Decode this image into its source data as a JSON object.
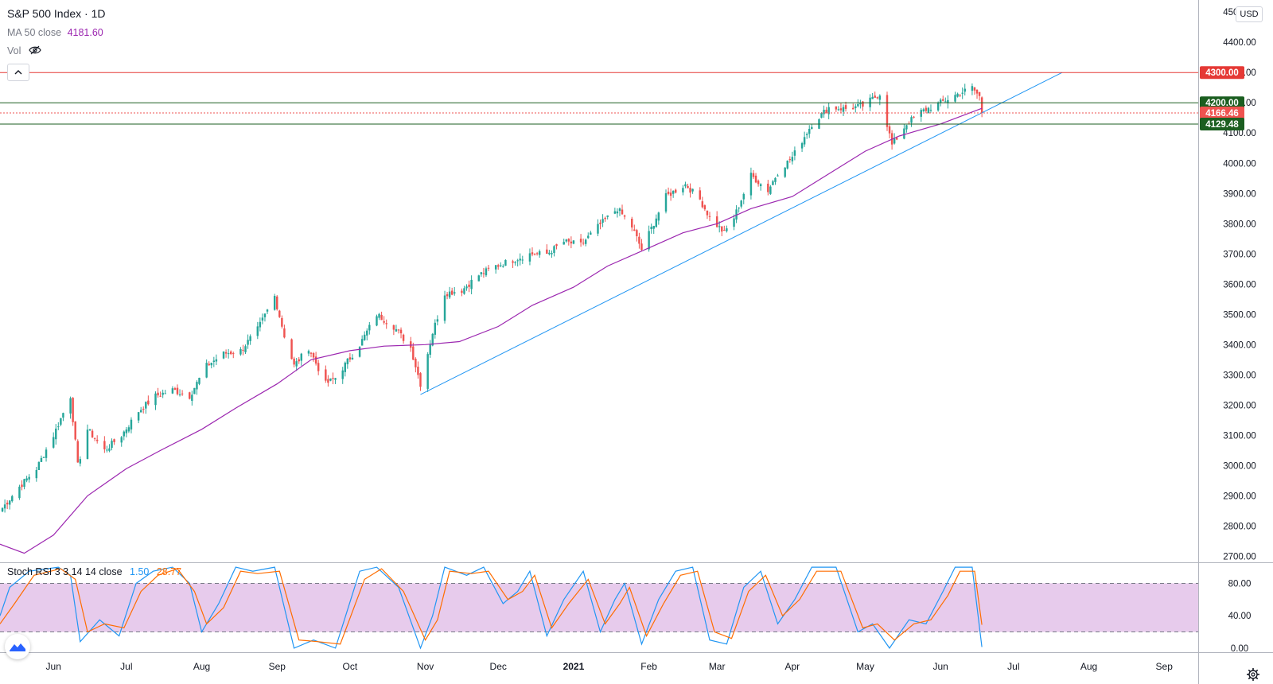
{
  "header": {
    "symbol": "S&P 500 Index · 1D",
    "ma_label": "MA 50 close",
    "ma_value": "4181.60",
    "vol_label": "Vol",
    "currency": "USD"
  },
  "oscillator": {
    "label": "Stoch RSI 3 3 14 14 close",
    "k_value": "1.50",
    "d_value": "28.77"
  },
  "colors": {
    "up": "#26a69a",
    "down": "#ef5350",
    "ma": "#9c27b0",
    "trendline": "#2196f3",
    "resistance": "#e53935",
    "support": "#1b5e20",
    "stoch_k": "#2196f3",
    "stoch_d": "#ff6d00",
    "stoch_band": "#e1bee7"
  },
  "chart_data": {
    "type": "candlestick",
    "title": "S&P 500 Index · 1D",
    "y_axis": {
      "ticks": [
        "4500.00",
        "4400.00",
        "4300.00",
        "4200.00",
        "4100.00",
        "4000.00",
        "3900.00",
        "3800.00",
        "3700.00",
        "3600.00",
        "3500.00",
        "3400.00",
        "3300.00",
        "3200.00",
        "3100.00",
        "3000.00",
        "2900.00",
        "2800.00",
        "2700.00"
      ],
      "range": [
        2680,
        4540
      ]
    },
    "x_axis": {
      "labels": [
        "Jun",
        "Jul",
        "Aug",
        "Sep",
        "Oct",
        "Nov",
        "Dec",
        "2021",
        "Feb",
        "Mar",
        "Apr",
        "May",
        "Jun",
        "Jul",
        "Aug",
        "Sep"
      ],
      "label_dates": [
        "2020-06-01",
        "2020-07-01",
        "2020-08-01",
        "2020-09-01",
        "2020-10-01",
        "2020-11-01",
        "2020-12-01",
        "2021-01-01",
        "2021-02-01",
        "2021-03-01",
        "2021-04-01",
        "2021-05-01",
        "2021-06-01",
        "2021-07-01",
        "2021-08-01",
        "2021-09-01"
      ],
      "range": [
        "2020-05-10",
        "2021-09-15"
      ]
    },
    "price_path": [
      [
        "2020-05-11",
        2860
      ],
      [
        "2020-05-18",
        2930
      ],
      [
        "2020-05-25",
        2990
      ],
      [
        "2020-06-01",
        3100
      ],
      [
        "2020-06-08",
        3230
      ],
      [
        "2020-06-11",
        3000
      ],
      [
        "2020-06-15",
        3120
      ],
      [
        "2020-06-22",
        3050
      ],
      [
        "2020-06-29",
        3100
      ],
      [
        "2020-07-06",
        3180
      ],
      [
        "2020-07-13",
        3230
      ],
      [
        "2020-07-20",
        3250
      ],
      [
        "2020-07-27",
        3230
      ],
      [
        "2020-08-03",
        3330
      ],
      [
        "2020-08-10",
        3370
      ],
      [
        "2020-08-17",
        3380
      ],
      [
        "2020-08-24",
        3450
      ],
      [
        "2020-08-31",
        3560
      ],
      [
        "2020-09-04",
        3430
      ],
      [
        "2020-09-08",
        3330
      ],
      [
        "2020-09-14",
        3390
      ],
      [
        "2020-09-21",
        3270
      ],
      [
        "2020-09-25",
        3290
      ],
      [
        "2020-10-05",
        3400
      ],
      [
        "2020-10-12",
        3500
      ],
      [
        "2020-10-19",
        3460
      ],
      [
        "2020-10-26",
        3390
      ],
      [
        "2020-10-30",
        3270
      ],
      [
        "2020-11-04",
        3440
      ],
      [
        "2020-11-09",
        3570
      ],
      [
        "2020-11-16",
        3580
      ],
      [
        "2020-11-23",
        3630
      ],
      [
        "2020-11-30",
        3660
      ],
      [
        "2020-12-07",
        3680
      ],
      [
        "2020-12-14",
        3700
      ],
      [
        "2020-12-21",
        3700
      ],
      [
        "2020-12-28",
        3740
      ],
      [
        "2021-01-04",
        3730
      ],
      [
        "2021-01-11",
        3790
      ],
      [
        "2021-01-19",
        3850
      ],
      [
        "2021-01-25",
        3790
      ],
      [
        "2021-01-29",
        3715
      ],
      [
        "2021-02-08",
        3890
      ],
      [
        "2021-02-16",
        3930
      ],
      [
        "2021-02-22",
        3880
      ],
      [
        "2021-02-26",
        3820
      ],
      [
        "2021-03-04",
        3770
      ],
      [
        "2021-03-08",
        3820
      ],
      [
        "2021-03-15",
        3960
      ],
      [
        "2021-03-22",
        3910
      ],
      [
        "2021-03-26",
        3970
      ],
      [
        "2021-04-01",
        4020
      ],
      [
        "2021-04-09",
        4130
      ],
      [
        "2021-04-16",
        4185
      ],
      [
        "2021-04-23",
        4180
      ],
      [
        "2021-04-30",
        4190
      ],
      [
        "2021-05-07",
        4230
      ],
      [
        "2021-05-12",
        4060
      ],
      [
        "2021-05-18",
        4130
      ],
      [
        "2021-05-24",
        4170
      ],
      [
        "2021-06-01",
        4200
      ],
      [
        "2021-06-07",
        4225
      ],
      [
        "2021-06-14",
        4250
      ],
      [
        "2021-06-17",
        4220
      ],
      [
        "2021-06-18",
        4166.46
      ]
    ],
    "series": [
      {
        "name": "MA 50 close",
        "points": [
          [
            "2020-05-10",
            2740
          ],
          [
            "2020-05-20",
            2710
          ],
          [
            "2020-06-01",
            2770
          ],
          [
            "2020-06-15",
            2900
          ],
          [
            "2020-07-01",
            2990
          ],
          [
            "2020-07-15",
            3050
          ],
          [
            "2020-08-01",
            3120
          ],
          [
            "2020-08-15",
            3190
          ],
          [
            "2020-09-01",
            3270
          ],
          [
            "2020-09-15",
            3350
          ],
          [
            "2020-10-01",
            3380
          ],
          [
            "2020-10-15",
            3395
          ],
          [
            "2020-11-01",
            3400
          ],
          [
            "2020-11-15",
            3410
          ],
          [
            "2020-12-01",
            3460
          ],
          [
            "2020-12-15",
            3530
          ],
          [
            "2021-01-01",
            3590
          ],
          [
            "2021-01-15",
            3660
          ],
          [
            "2021-02-01",
            3720
          ],
          [
            "2021-02-15",
            3770
          ],
          [
            "2021-03-01",
            3800
          ],
          [
            "2021-03-15",
            3850
          ],
          [
            "2021-04-01",
            3890
          ],
          [
            "2021-04-15",
            3960
          ],
          [
            "2021-05-01",
            4040
          ],
          [
            "2021-05-15",
            4090
          ],
          [
            "2021-06-01",
            4130
          ],
          [
            "2021-06-18",
            4181.6
          ]
        ]
      },
      {
        "name": "Stoch RSI %K",
        "values_path": [
          [
            "2020-05-10",
            40
          ],
          [
            "2020-05-14",
            75
          ],
          [
            "2020-05-22",
            95
          ],
          [
            "2020-06-03",
            100
          ],
          [
            "2020-06-08",
            90
          ],
          [
            "2020-06-12",
            8
          ],
          [
            "2020-06-20",
            35
          ],
          [
            "2020-06-28",
            15
          ],
          [
            "2020-07-05",
            80
          ],
          [
            "2020-07-12",
            95
          ],
          [
            "2020-07-20",
            100
          ],
          [
            "2020-07-27",
            80
          ],
          [
            "2020-08-01",
            20
          ],
          [
            "2020-08-08",
            55
          ],
          [
            "2020-08-15",
            100
          ],
          [
            "2020-08-22",
            95
          ],
          [
            "2020-08-31",
            100
          ],
          [
            "2020-09-08",
            0
          ],
          [
            "2020-09-16",
            10
          ],
          [
            "2020-09-25",
            0
          ],
          [
            "2020-10-05",
            95
          ],
          [
            "2020-10-12",
            100
          ],
          [
            "2020-10-21",
            75
          ],
          [
            "2020-10-30",
            0
          ],
          [
            "2020-11-04",
            40
          ],
          [
            "2020-11-09",
            100
          ],
          [
            "2020-11-18",
            90
          ],
          [
            "2020-11-25",
            100
          ],
          [
            "2020-12-03",
            55
          ],
          [
            "2020-12-09",
            70
          ],
          [
            "2020-12-14",
            95
          ],
          [
            "2020-12-21",
            15
          ],
          [
            "2020-12-28",
            60
          ],
          [
            "2021-01-05",
            95
          ],
          [
            "2021-01-12",
            20
          ],
          [
            "2021-01-18",
            60
          ],
          [
            "2021-01-22",
            80
          ],
          [
            "2021-01-29",
            5
          ],
          [
            "2021-02-05",
            60
          ],
          [
            "2021-02-12",
            95
          ],
          [
            "2021-02-19",
            100
          ],
          [
            "2021-02-26",
            10
          ],
          [
            "2021-03-05",
            5
          ],
          [
            "2021-03-12",
            75
          ],
          [
            "2021-03-19",
            95
          ],
          [
            "2021-03-26",
            30
          ],
          [
            "2021-04-02",
            60
          ],
          [
            "2021-04-09",
            100
          ],
          [
            "2021-04-19",
            100
          ],
          [
            "2021-04-28",
            20
          ],
          [
            "2021-05-04",
            30
          ],
          [
            "2021-05-11",
            0
          ],
          [
            "2021-05-19",
            35
          ],
          [
            "2021-05-26",
            30
          ],
          [
            "2021-06-02",
            70
          ],
          [
            "2021-06-07",
            100
          ],
          [
            "2021-06-14",
            100
          ],
          [
            "2021-06-18",
            1.5
          ]
        ]
      },
      {
        "name": "Stoch RSI %D",
        "values_path": [
          [
            "2020-05-10",
            30
          ],
          [
            "2020-05-16",
            55
          ],
          [
            "2020-05-24",
            90
          ],
          [
            "2020-06-04",
            98
          ],
          [
            "2020-06-10",
            85
          ],
          [
            "2020-06-15",
            20
          ],
          [
            "2020-06-22",
            30
          ],
          [
            "2020-06-30",
            25
          ],
          [
            "2020-07-07",
            70
          ],
          [
            "2020-07-14",
            90
          ],
          [
            "2020-07-22",
            98
          ],
          [
            "2020-07-29",
            70
          ],
          [
            "2020-08-03",
            30
          ],
          [
            "2020-08-10",
            50
          ],
          [
            "2020-08-17",
            95
          ],
          [
            "2020-08-24",
            92
          ],
          [
            "2020-09-02",
            95
          ],
          [
            "2020-09-10",
            10
          ],
          [
            "2020-09-18",
            8
          ],
          [
            "2020-09-27",
            5
          ],
          [
            "2020-10-07",
            85
          ],
          [
            "2020-10-14",
            98
          ],
          [
            "2020-10-23",
            70
          ],
          [
            "2020-11-01",
            10
          ],
          [
            "2020-11-06",
            35
          ],
          [
            "2020-11-11",
            95
          ],
          [
            "2020-11-20",
            92
          ],
          [
            "2020-11-27",
            95
          ],
          [
            "2020-12-05",
            60
          ],
          [
            "2020-12-11",
            70
          ],
          [
            "2020-12-16",
            90
          ],
          [
            "2020-12-23",
            25
          ],
          [
            "2020-12-30",
            55
          ],
          [
            "2021-01-07",
            85
          ],
          [
            "2021-01-14",
            30
          ],
          [
            "2021-01-20",
            55
          ],
          [
            "2021-01-24",
            75
          ],
          [
            "2021-01-31",
            15
          ],
          [
            "2021-02-07",
            55
          ],
          [
            "2021-02-14",
            90
          ],
          [
            "2021-02-21",
            95
          ],
          [
            "2021-02-28",
            20
          ],
          [
            "2021-03-07",
            12
          ],
          [
            "2021-03-14",
            70
          ],
          [
            "2021-03-21",
            90
          ],
          [
            "2021-03-28",
            40
          ],
          [
            "2021-04-04",
            60
          ],
          [
            "2021-04-11",
            95
          ],
          [
            "2021-04-21",
            95
          ],
          [
            "2021-04-30",
            25
          ],
          [
            "2021-05-06",
            30
          ],
          [
            "2021-05-13",
            10
          ],
          [
            "2021-05-21",
            30
          ],
          [
            "2021-05-28",
            35
          ],
          [
            "2021-06-04",
            65
          ],
          [
            "2021-06-09",
            95
          ],
          [
            "2021-06-15",
            95
          ],
          [
            "2021-06-18",
            28.77
          ]
        ]
      }
    ],
    "horizontal_lines": [
      {
        "value": 4300,
        "label": "4300.00",
        "color": "#e53935"
      },
      {
        "value": 4200,
        "label": "4200.00",
        "color": "#1b5e20"
      },
      {
        "value": 4166.46,
        "label": "4166.46",
        "color": "#ef5350",
        "dotted": true
      },
      {
        "value": 4129.48,
        "label": "4129.48",
        "color": "#1b5e20"
      }
    ],
    "trendline": {
      "from": [
        "2020-10-30",
        3235
      ],
      "to": [
        "2021-07-21",
        4300
      ]
    },
    "oscillator_axis": {
      "ticks": [
        "80.00",
        "40.00",
        "0.00"
      ],
      "range": [
        -5,
        105
      ],
      "band": [
        20,
        80
      ]
    }
  }
}
